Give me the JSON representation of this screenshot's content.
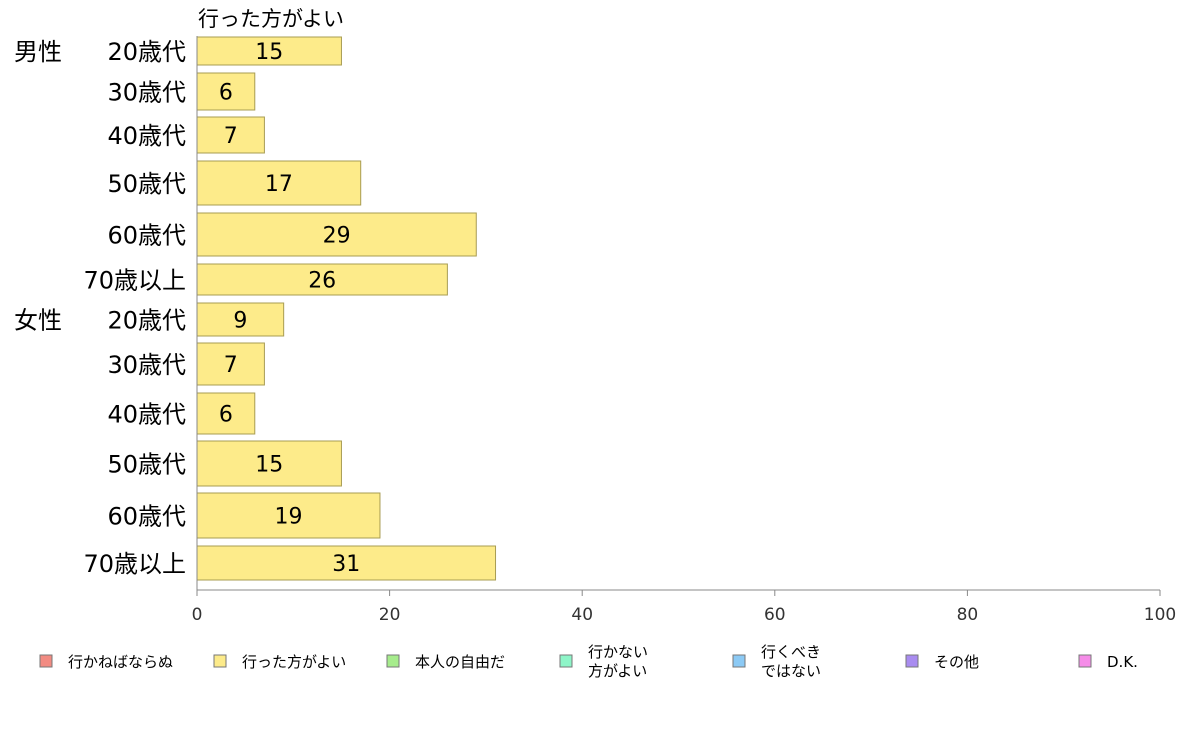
{
  "chart_data": {
    "type": "bar",
    "orientation": "horizontal",
    "series_title": "行った方がよい",
    "groups": [
      "男性",
      "女性"
    ],
    "categories": [
      "20歳代",
      "30歳代",
      "40歳代",
      "50歳代",
      "60歳代",
      "70歳以上",
      "20歳代",
      "30歳代",
      "40歳代",
      "50歳代",
      "60歳代",
      "70歳以上"
    ],
    "category_group": [
      "男性",
      "",
      "",
      "",
      "",
      "",
      "女性",
      "",
      "",
      "",
      "",
      ""
    ],
    "series": [
      {
        "name": "行った方がよい",
        "values": [
          15,
          6,
          7,
          17,
          29,
          26,
          9,
          7,
          6,
          15,
          19,
          31
        ]
      }
    ],
    "xlim": [
      0,
      100
    ],
    "xticks": [
      0,
      20,
      40,
      60,
      80,
      100
    ],
    "grid": false,
    "legend_position": "bottom",
    "legend": [
      {
        "label": "行かねばならぬ",
        "color": "#f28b82"
      },
      {
        "label": "行った方がよい",
        "color": "#fdeb8a"
      },
      {
        "label": "本人の自由だ",
        "color": "#a6ec8c"
      },
      {
        "label": "行かない\n方がよい",
        "color": "#8ef5c8"
      },
      {
        "label": "行くべき\nではない",
        "color": "#8ccaf5"
      },
      {
        "label": "その他",
        "color": "#a98cf0"
      },
      {
        "label": "D.K.",
        "color": "#f58ce8"
      }
    ],
    "bar_color": "#fdeb8a",
    "bar_stroke": "#a89c52"
  }
}
